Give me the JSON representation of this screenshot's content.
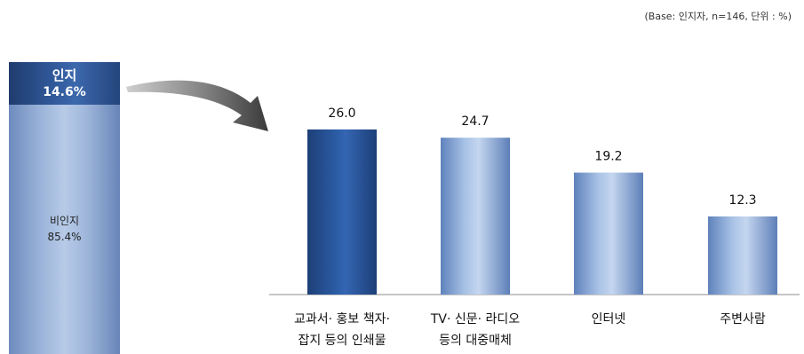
{
  "base_note": "(Base: 인지자, n=146, 단위 : %)",
  "awareness": {
    "aware_label": "인지",
    "aware_value": "14.6%",
    "unaware_label": "비인지",
    "unaware_value": "85.4%"
  },
  "colors": {
    "aware_bar": "#2d508c",
    "unaware_bar": "#a9bfe2",
    "highlight_bar": "#2a56a0",
    "light_bar": "#a7c0e4"
  },
  "chart_data": {
    "type": "bar",
    "categories": [
      [
        "교과서· 홍보 책자·",
        "잡지 등의 인쇄물"
      ],
      [
        "TV· 신문· 라디오",
        "등의 대중매체"
      ],
      [
        "인터넷"
      ],
      [
        "주변사람"
      ]
    ],
    "values": [
      26.0,
      24.7,
      19.2,
      12.3
    ],
    "value_labels": [
      "26.0",
      "24.7",
      "19.2",
      "12.3"
    ],
    "ylim": [
      0,
      38
    ],
    "grid": false,
    "legend": "none"
  }
}
